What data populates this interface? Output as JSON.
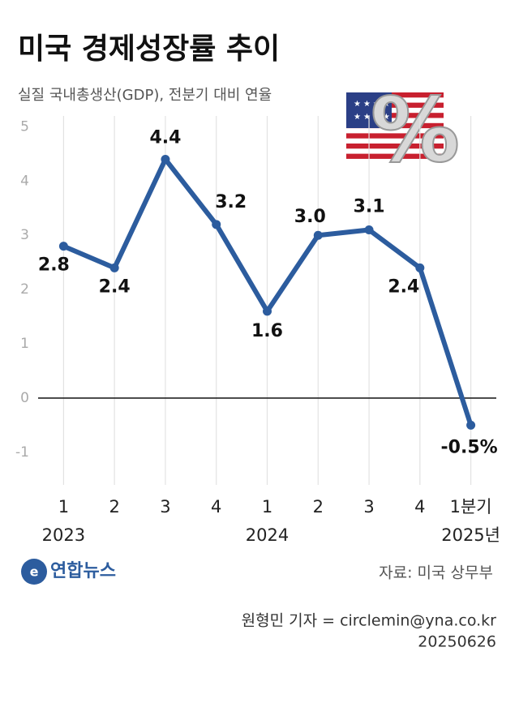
{
  "chart_data": {
    "type": "line",
    "title": "미국 경제성장률 추이",
    "subtitle": "실질 국내총생산(GDP), 전분기 대비 연율",
    "categories": [
      "1",
      "2",
      "3",
      "4",
      "1",
      "2",
      "3",
      "4",
      "1분기"
    ],
    "year_labels": [
      "2023",
      null,
      null,
      null,
      "2024",
      null,
      null,
      null,
      "2025년"
    ],
    "values": [
      2.8,
      2.4,
      4.4,
      3.2,
      1.6,
      3.0,
      3.1,
      2.4,
      -0.5
    ],
    "value_labels": [
      "2.8",
      "2.4",
      "4.4",
      "3.2",
      "1.6",
      "3.0",
      "3.1",
      "2.4",
      "-0.5%"
    ],
    "color": "#2c5c9e",
    "ylim": [
      -1.6,
      5.2
    ],
    "yticks": [
      -1,
      0,
      1,
      2,
      3,
      4,
      5
    ],
    "zero_line": true,
    "grid": "x",
    "logo": "연합뉴스",
    "source": "자료: 미국 상무부",
    "credit": "원형민 기자 = circlemin@yna.co.kr",
    "date": "20250626"
  }
}
